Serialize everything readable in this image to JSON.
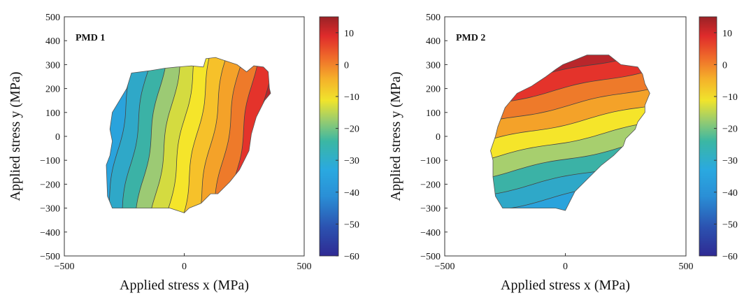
{
  "chart_data": [
    {
      "type": "contour",
      "title": "PMD 1",
      "xlabel": "Applied stress x (MPa)",
      "ylabel": "Applied stress y (MPa)",
      "xlim": [
        -500,
        500
      ],
      "ylim": [
        -500,
        500
      ],
      "xticks": [
        -500,
        0,
        500
      ],
      "yticks": [
        500,
        400,
        300,
        200,
        100,
        0,
        -100,
        -200,
        -300,
        -400,
        -500
      ],
      "colorbar": {
        "range": [
          -60,
          15
        ],
        "ticks": [
          10,
          0,
          -10,
          -20,
          -30,
          -40,
          -50,
          -60
        ],
        "colormap": "jet"
      },
      "grid": false,
      "gradient_direction": "increases with x",
      "bands": [
        {
          "level": -40,
          "color": "#2aa3dc"
        },
        {
          "level": -35,
          "color": "#2fa8c8"
        },
        {
          "level": -30,
          "color": "#3bb2a6"
        },
        {
          "level": -25,
          "color": "#9cca74"
        },
        {
          "level": -20,
          "color": "#d4db40"
        },
        {
          "level": -15,
          "color": "#f5e52a"
        },
        {
          "level": -10,
          "color": "#f6c12a"
        },
        {
          "level": -5,
          "color": "#f4a229"
        },
        {
          "level": 0,
          "color": "#ee7a2a"
        },
        {
          "level": 5,
          "color": "#e4332b"
        },
        {
          "level": 10,
          "color": "#b9262b"
        }
      ]
    },
    {
      "type": "contour",
      "title": "PMD 2",
      "xlabel": "Applied stress x (MPa)",
      "ylabel": "Applied stress y (MPa)",
      "xlim": [
        -500,
        500
      ],
      "ylim": [
        -500,
        500
      ],
      "xticks": [
        -500,
        0,
        500
      ],
      "yticks": [
        500,
        400,
        300,
        200,
        100,
        0,
        -100,
        -200,
        -300,
        -400,
        -500
      ],
      "colorbar": {
        "range": [
          -60,
          15
        ],
        "ticks": [
          10,
          0,
          -10,
          -20,
          -30,
          -40,
          -50,
          -60
        ],
        "colormap": "jet"
      },
      "grid": false,
      "gradient_direction": "increases with y",
      "bands": [
        {
          "level": -40,
          "color": "#2aa3dc"
        },
        {
          "level": -35,
          "color": "#2fa8c8"
        },
        {
          "level": -30,
          "color": "#3bb2a6"
        },
        {
          "level": -25,
          "color": "#a7cf6e"
        },
        {
          "level": -15,
          "color": "#f5e52a"
        },
        {
          "level": -10,
          "color": "#f4a229"
        },
        {
          "level": 0,
          "color": "#ee7a2a"
        },
        {
          "level": 5,
          "color": "#e4332b"
        },
        {
          "level": 10,
          "color": "#b9262b"
        }
      ]
    }
  ]
}
